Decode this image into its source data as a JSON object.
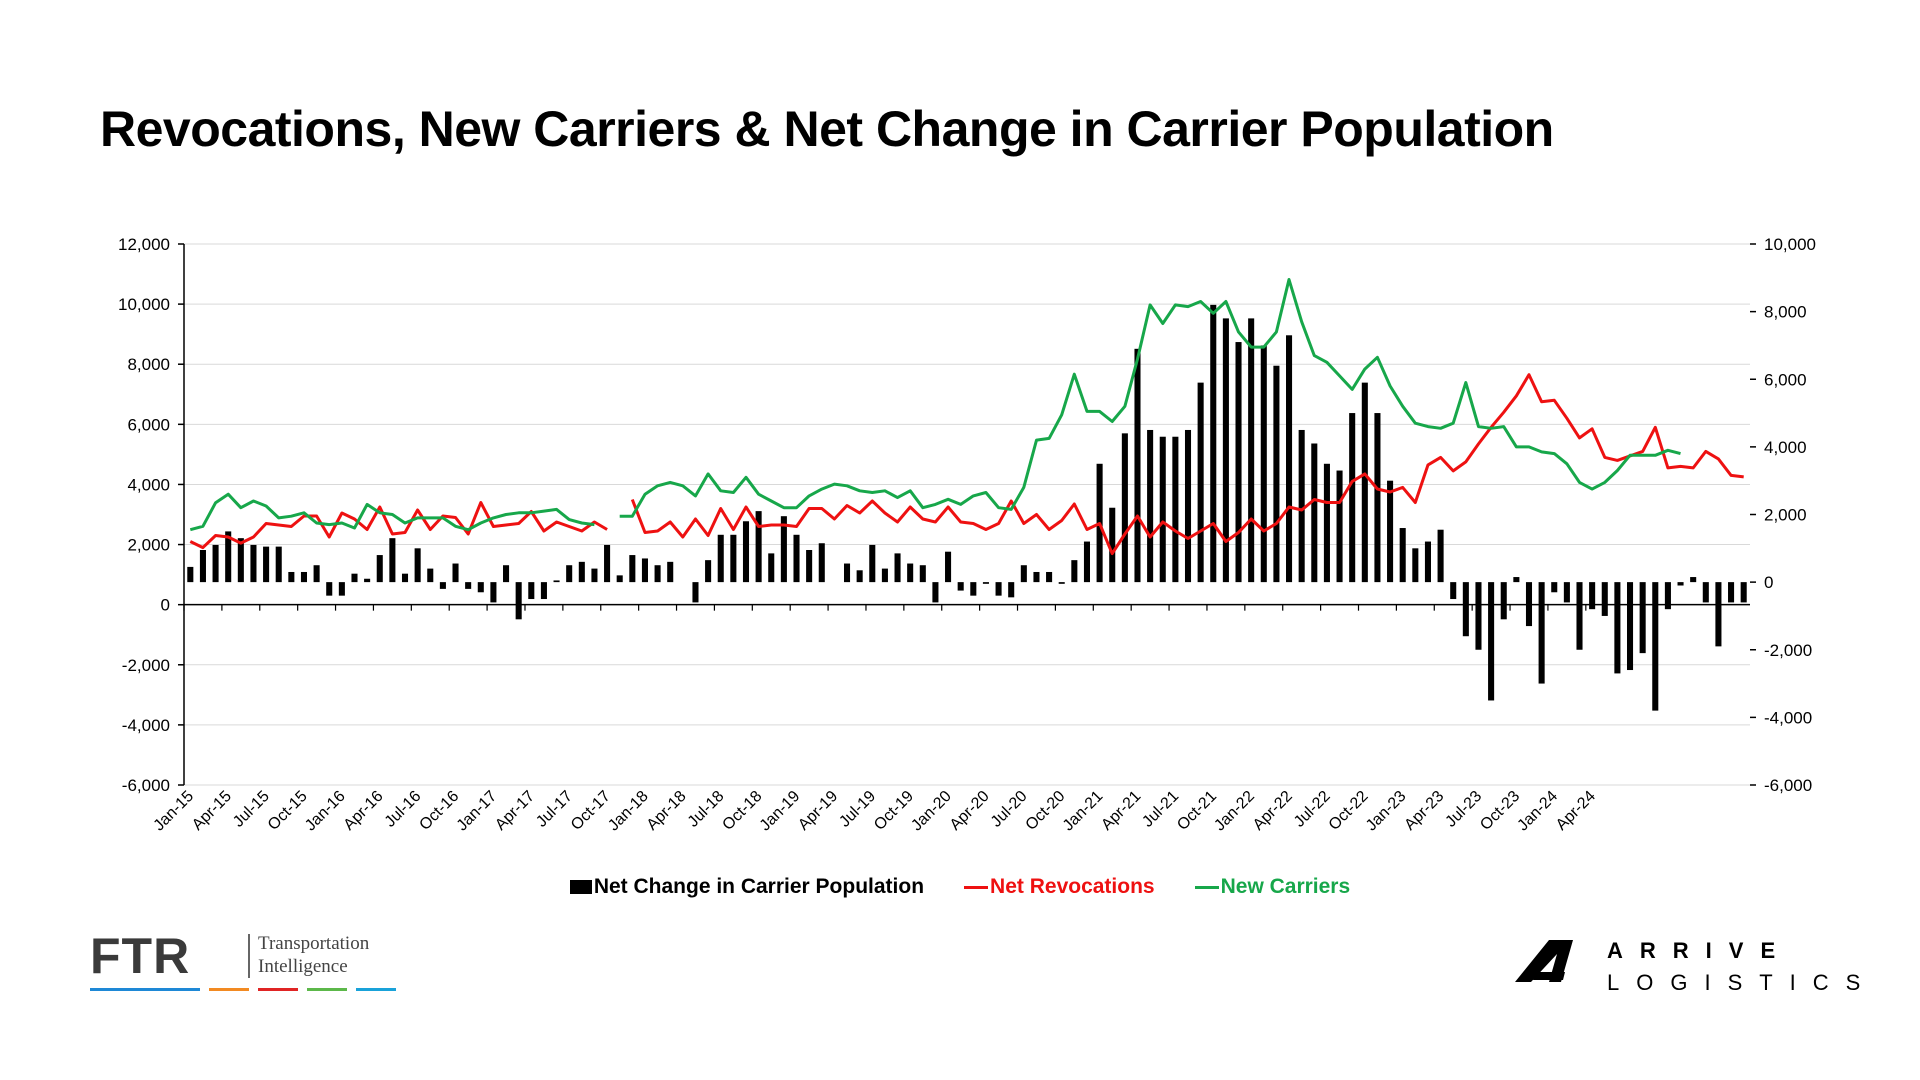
{
  "title": "Revocations, New Carriers & Net Change in Carrier Population",
  "chart_data": {
    "type": "bar+line",
    "x_tick_labels": [
      "Jan-15",
      "Apr-15",
      "Jul-15",
      "Oct-15",
      "Jan-16",
      "Apr-16",
      "Jul-16",
      "Oct-16",
      "Jan-17",
      "Apr-17",
      "Jul-17",
      "Oct-17",
      "Jan-18",
      "Apr-18",
      "Jul-18",
      "Oct-18",
      "Jan-19",
      "Apr-19",
      "Jul-19",
      "Oct-19",
      "Jan-20",
      "Apr-20",
      "Jul-20",
      "Oct-20",
      "Jan-21",
      "Apr-21",
      "Jul-21",
      "Oct-21",
      "Jan-22",
      "Apr-22",
      "Jul-22",
      "Oct-22",
      "Jan-23",
      "Apr-23",
      "Jul-23",
      "Oct-23",
      "Jan-24",
      "Apr-24"
    ],
    "left_axis": {
      "ylim": [
        -6000,
        12000
      ],
      "ticks": [
        "12,000",
        "10,000",
        "8,000",
        "6,000",
        "4,000",
        "2,000",
        "0",
        "-2,000",
        "-4,000",
        "-6,000"
      ]
    },
    "right_axis": {
      "ylim": [
        -6000,
        10000
      ],
      "ticks": [
        "10,000",
        "8,000",
        "6,000",
        "4,000",
        "2,000",
        "0",
        "-2,000",
        "-4,000",
        "-6,000"
      ]
    },
    "series": [
      {
        "name": "Net Change in Carrier Population",
        "type": "bar",
        "axis": "right",
        "color": "#000000",
        "values": [
          450,
          950,
          1100,
          1500,
          1300,
          1100,
          1050,
          1050,
          300,
          300,
          500,
          -400,
          -400,
          250,
          100,
          800,
          1300,
          250,
          1000,
          400,
          -200,
          550,
          -200,
          -300,
          -600,
          500,
          -1100,
          -500,
          -500,
          50,
          500,
          600,
          400,
          1100,
          200,
          800,
          700,
          500,
          600,
          null,
          -600,
          650,
          1400,
          1400,
          1800,
          2100,
          850,
          1950,
          1400,
          950,
          1150,
          0,
          550,
          350,
          1100,
          400,
          850,
          550,
          500,
          -600,
          900,
          -250,
          -400,
          -50,
          -400,
          -450,
          500,
          300,
          300,
          -50,
          650,
          1200,
          3500,
          2200,
          4400,
          6900,
          4500,
          4300,
          4300,
          4500,
          5900,
          8200,
          7800,
          7100,
          7800,
          7000,
          6400,
          7300,
          4500,
          4100,
          3500,
          3300,
          5000,
          5900,
          5000,
          3000,
          1600,
          1000,
          1200,
          1550,
          -500,
          -1600,
          -2000,
          -3500,
          -1100,
          150,
          -1300,
          -3000,
          -300,
          -600,
          -2000,
          -800,
          -1000,
          -2700,
          -2600,
          -2100,
          -3800,
          -800,
          -100,
          150,
          -600,
          -1900,
          -600,
          -600
        ]
      },
      {
        "name": "Net Revocations",
        "type": "line",
        "axis": "left",
        "color": "#ee1111",
        "values": [
          2100,
          1900,
          2300,
          2250,
          2050,
          2250,
          2700,
          2650,
          2600,
          2950,
          2950,
          2250,
          3050,
          2850,
          2500,
          3250,
          2350,
          2400,
          3150,
          2500,
          2950,
          2900,
          2350,
          3400,
          2600,
          2650,
          2700,
          3100,
          2450,
          2750,
          2600,
          2450,
          2750,
          2500,
          null,
          3500,
          2400,
          2450,
          2750,
          2250,
          2850,
          2300,
          3200,
          2500,
          3250,
          2600,
          2650,
          2650,
          2600,
          3200,
          3200,
          2850,
          3300,
          3050,
          3450,
          3050,
          2750,
          3250,
          2850,
          2750,
          3250,
          2750,
          2700,
          2500,
          2700,
          3450,
          2700,
          3000,
          2500,
          2800,
          3350,
          2500,
          2700,
          1700,
          2350,
          2950,
          2250,
          2750,
          2450,
          2200,
          2450,
          2700,
          2100,
          2400,
          2850,
          2450,
          2700,
          3250,
          3150,
          3500,
          3400,
          3400,
          4100,
          4350,
          3850,
          3750,
          3900,
          3400,
          4650,
          4900,
          4450,
          4750,
          5350,
          5900,
          6400,
          6950,
          7650,
          6750,
          6800,
          6200,
          5550,
          5850,
          4900,
          4800,
          4950,
          5100,
          5900,
          4550,
          4600,
          4550,
          5100,
          4850,
          4300,
          4250
        ]
      },
      {
        "name": "New Carriers",
        "type": "line",
        "axis": "right",
        "color": "#17a74a",
        "values": [
          1550,
          1650,
          2350,
          2600,
          2200,
          2400,
          2250,
          1900,
          1950,
          2050,
          1750,
          1700,
          1750,
          1600,
          2300,
          2050,
          2000,
          1750,
          1900,
          1900,
          1900,
          1650,
          1550,
          1750,
          1900,
          2000,
          2050,
          2050,
          2100,
          2150,
          1850,
          1750,
          1700,
          null,
          1950,
          1950,
          2600,
          2850,
          2950,
          2850,
          2550,
          3200,
          2700,
          2650,
          3100,
          2600,
          2400,
          2200,
          2200,
          2550,
          2750,
          2900,
          2850,
          2700,
          2650,
          2700,
          2500,
          2700,
          2200,
          2300,
          2450,
          2300,
          2550,
          2650,
          2200,
          2150,
          2800,
          4200,
          4250,
          4950,
          6150,
          5050,
          5050,
          4750,
          5200,
          6600,
          8200,
          7650,
          8200,
          8150,
          8300,
          7950,
          8300,
          7400,
          6950,
          6950,
          7400,
          8950,
          7700,
          6700,
          6500,
          6100,
          5700,
          6300,
          6650,
          5800,
          5200,
          4700,
          4600,
          4550,
          4700,
          5900,
          4600,
          4550,
          4600,
          4000,
          4000,
          3850,
          3800,
          3500,
          2950,
          2750,
          2950,
          3300,
          3750,
          3750,
          3750,
          3900,
          3800
        ]
      }
    ],
    "legend": [
      "Net Change in Carrier Population",
      "Net Revocations",
      "New Carriers"
    ],
    "legend_position": "bottom",
    "grid": "horizontal"
  },
  "ftr_logo": {
    "mark": "FTR",
    "tagline_1": "Transportation",
    "tagline_2": "Intelligence",
    "stripe_colors": [
      "#1e88d6",
      "#f28a22",
      "#e02424",
      "#5cb84a",
      "#19a2d9"
    ]
  },
  "arrive_logo": {
    "word_1": "ARRIVE",
    "word_2": "LOGISTICS"
  }
}
